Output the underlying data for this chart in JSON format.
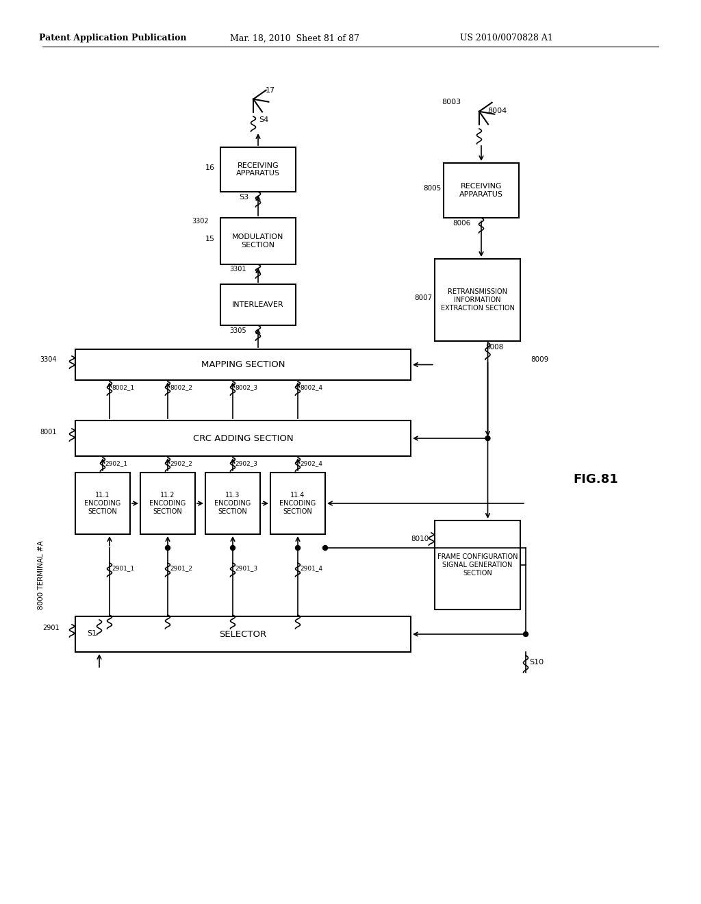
{
  "bg_color": "#ffffff",
  "header_left": "Patent Application Publication",
  "header_mid": "Mar. 18, 2010  Sheet 81 of 87",
  "header_right": "US 2010/0070828 A1",
  "fig_label": "FIG.81",
  "terminal_label": "8000 TERMINAL #A"
}
